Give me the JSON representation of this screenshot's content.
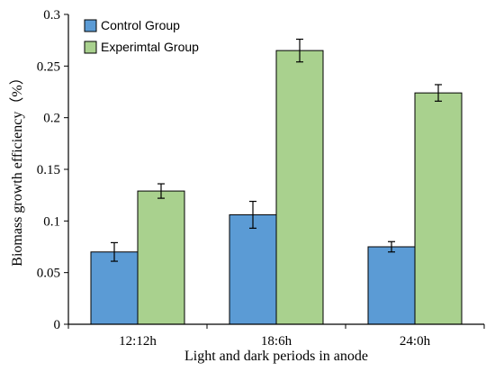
{
  "chart_data": {
    "type": "bar",
    "title": "",
    "xlabel": "Light and dark periods in anode",
    "ylabel": "Biomass growth efficiency（%）",
    "categories": [
      "12:12h",
      "18:6h",
      "24:0h"
    ],
    "ylim": [
      0,
      0.3
    ],
    "yticks": [
      0,
      0.05,
      0.1,
      0.15,
      0.2,
      0.25,
      0.3
    ],
    "ytick_labels": [
      "0",
      "0.05",
      "0.1",
      "0.15",
      "0.2",
      "0.25",
      "0.3"
    ],
    "grid": false,
    "legend": {
      "placement": "top-left"
    },
    "series": [
      {
        "name": "Control Group",
        "color": "#5b9bd5",
        "values": [
          0.07,
          0.106,
          0.075
        ],
        "errors": [
          0.009,
          0.013,
          0.005
        ]
      },
      {
        "name": "Experimtal Group",
        "color": "#a9d18e",
        "values": [
          0.129,
          0.265,
          0.224
        ],
        "errors": [
          0.007,
          0.011,
          0.008
        ]
      }
    ]
  }
}
